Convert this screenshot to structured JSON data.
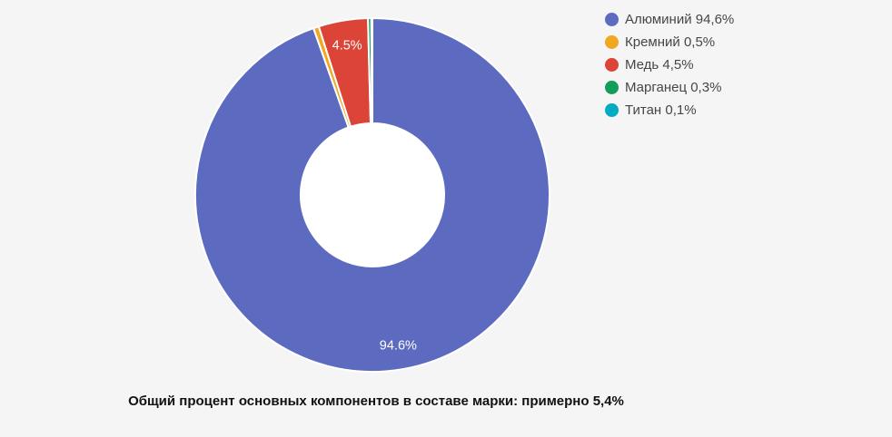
{
  "page": {
    "background_color": "#f5f5f5",
    "hole_color": "#ffffff"
  },
  "chart_data": {
    "type": "pie",
    "donut": true,
    "legend_position": "right",
    "start_angle_deg": 0,
    "direction": "clockwise",
    "slices": [
      {
        "key": "aluminium",
        "name": "Алюминий",
        "value": 94.6,
        "color": "#5c6bc0",
        "data_label": "94.6%",
        "legend_label": "Алюминий 94,6%"
      },
      {
        "key": "silicon",
        "name": "Кремний",
        "value": 0.5,
        "color": "#efa820",
        "data_label": null,
        "legend_label": "Кремний 0,5%"
      },
      {
        "key": "copper",
        "name": "Медь",
        "value": 4.5,
        "color": "#db4437",
        "data_label": "4.5%",
        "legend_label": "Медь 4,5%"
      },
      {
        "key": "manganese",
        "name": "Марганец",
        "value": 0.3,
        "color": "#149d58",
        "data_label": null,
        "legend_label": "Марганец 0,3%"
      },
      {
        "key": "titanium",
        "name": "Титан",
        "value": 0.1,
        "color": "#00acc1",
        "data_label": null,
        "legend_label": "Титан 0,1%"
      }
    ]
  },
  "caption": {
    "text": "Общий процент основных компонентов в составе марки: примерно 5,4%"
  }
}
